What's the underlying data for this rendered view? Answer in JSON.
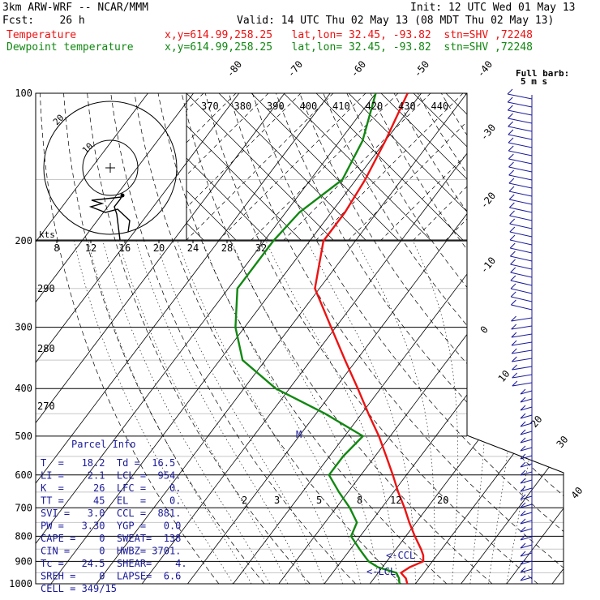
{
  "header": {
    "model": "3km ARW-WRF -- NCAR/MMM",
    "init": "Init: 12 UTC Wed 01 May 13",
    "fcst": "Fcst:    26 h",
    "valid": "Valid: 14 UTC Thu 02 May 13 (08 MDT Thu 02 May 13)",
    "temp_label": "Temperature",
    "temp_loc": "x,y=614.99,258.25   lat,lon= 32.45, -93.82  stn=SHV ,72248",
    "dew_label": "Dewpoint temperature",
    "dew_loc": "x,y=614.99,258.25   lat,lon= 32.45, -93.82  stn=SHV ,72248"
  },
  "colors": {
    "temperature": "#ee1111",
    "dewpoint": "#118811",
    "wind": "#1a1a99",
    "info": "#1a1a99"
  },
  "chart_data": {
    "type": "skew-t",
    "pressure_levels": [
      100,
      200,
      300,
      400,
      500,
      600,
      700,
      800,
      900,
      1000
    ],
    "isotherm_labels": [
      "-80",
      "-70",
      "-60",
      "-50",
      "-40",
      "-30",
      "-20",
      "-10",
      "0",
      "10",
      "20",
      "30",
      "40"
    ],
    "theta_labels": [
      "370",
      "380",
      "390",
      "400",
      "410",
      "420",
      "430",
      "440"
    ],
    "dry_adiabat_labels": [
      "290",
      "280",
      "270"
    ],
    "mixing_ratio_labels": [
      "2",
      "3",
      "5",
      "8",
      "12",
      "20"
    ],
    "hodograph_speed_axis": [
      "8",
      "12",
      "16",
      "20",
      "24",
      "28",
      "32"
    ],
    "hodograph_ring_labels": [
      "10",
      "20"
    ],
    "hodograph_unit": "kts",
    "full_barb_label": "Full barb:",
    "full_barb_value": "5 m s",
    "temperature": {
      "name": "Temperature",
      "p": [
        1000,
        975,
        950,
        925,
        900,
        875,
        850,
        800,
        750,
        700,
        650,
        600,
        550,
        500,
        450,
        400,
        350,
        300,
        250,
        200,
        175,
        150,
        125,
        100
      ],
      "t": [
        18.2,
        17.0,
        15.0,
        16.0,
        18.0,
        17.0,
        15.5,
        12.0,
        8.5,
        5.0,
        1.0,
        -3.0,
        -7.5,
        -12.5,
        -18.5,
        -25.0,
        -32.5,
        -41.0,
        -51.0,
        -57.0,
        -57.0,
        -58.0,
        -60.0,
        -63.0
      ]
    },
    "dewpoint": {
      "name": "Dewpoint temperature",
      "p": [
        1000,
        975,
        950,
        925,
        900,
        875,
        850,
        800,
        750,
        700,
        650,
        600,
        550,
        500,
        450,
        400,
        350,
        300,
        250,
        200,
        175,
        150,
        125,
        100
      ],
      "td": [
        16.5,
        15.5,
        14.0,
        9.0,
        6.0,
        4.0,
        2.0,
        -2.0,
        -3.0,
        -7.0,
        -12.0,
        -17.0,
        -17.0,
        -16.0,
        -28.0,
        -43.0,
        -55.0,
        -62.0,
        -68.0,
        -68.0,
        -67.0,
        -63.0,
        -65.0,
        -70.0
      ]
    },
    "annotations": {
      "m_marker": "M",
      "lcl_marker": "<-LCL",
      "ccl_marker": "<-CCL"
    }
  },
  "parcel_info": {
    "title": "Parcel Info",
    "rows": [
      "T  =   18.2  Td =  16.5",
      "LI =    2.1  LCL =  954.",
      "K  =     26  LFC =    0.",
      "TT =     45  EL  =    0.",
      "SVI =   3.0  CCL =  881.",
      "PW =   3.30  YGP =   0.0",
      "CAPE =    0  SWEAT=  138",
      "CIN =     0  HWBZ= 3701.",
      "Tc =   24.5  SHEAR=    4.",
      "SREH =    0  LAPSE=  6.6",
      "CELL = 349/15"
    ]
  }
}
